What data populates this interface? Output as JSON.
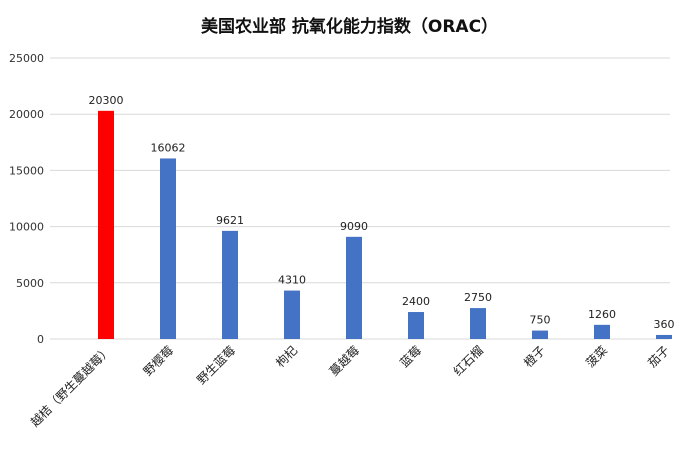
{
  "chart_data": {
    "type": "bar",
    "title": "美国农业部 抗氧化能力指数（ORAC）",
    "categories": [
      "越桔（野生蔓越莓）",
      "野樱莓",
      "野生蓝莓",
      "枸杞",
      "蔓越莓",
      "蓝莓",
      "红石榴",
      "橙子",
      "菠菜",
      "茄子"
    ],
    "values": [
      20300,
      16062,
      9621,
      4310,
      9090,
      2400,
      2750,
      750,
      1260,
      360
    ],
    "value_labels": [
      "20300",
      "16062",
      "9621",
      "4310",
      "9090",
      "2400",
      "2750",
      "750",
      "1260",
      "360"
    ],
    "colors": [
      "#ff0000",
      "#4472c4",
      "#4472c4",
      "#4472c4",
      "#4472c4",
      "#4472c4",
      "#4472c4",
      "#4472c4",
      "#4472c4",
      "#4472c4"
    ],
    "yticks": [
      "0",
      "5000",
      "10000",
      "15000",
      "20000",
      "25000"
    ],
    "ylim": [
      0,
      25000
    ],
    "grid": true,
    "legend": "none"
  }
}
